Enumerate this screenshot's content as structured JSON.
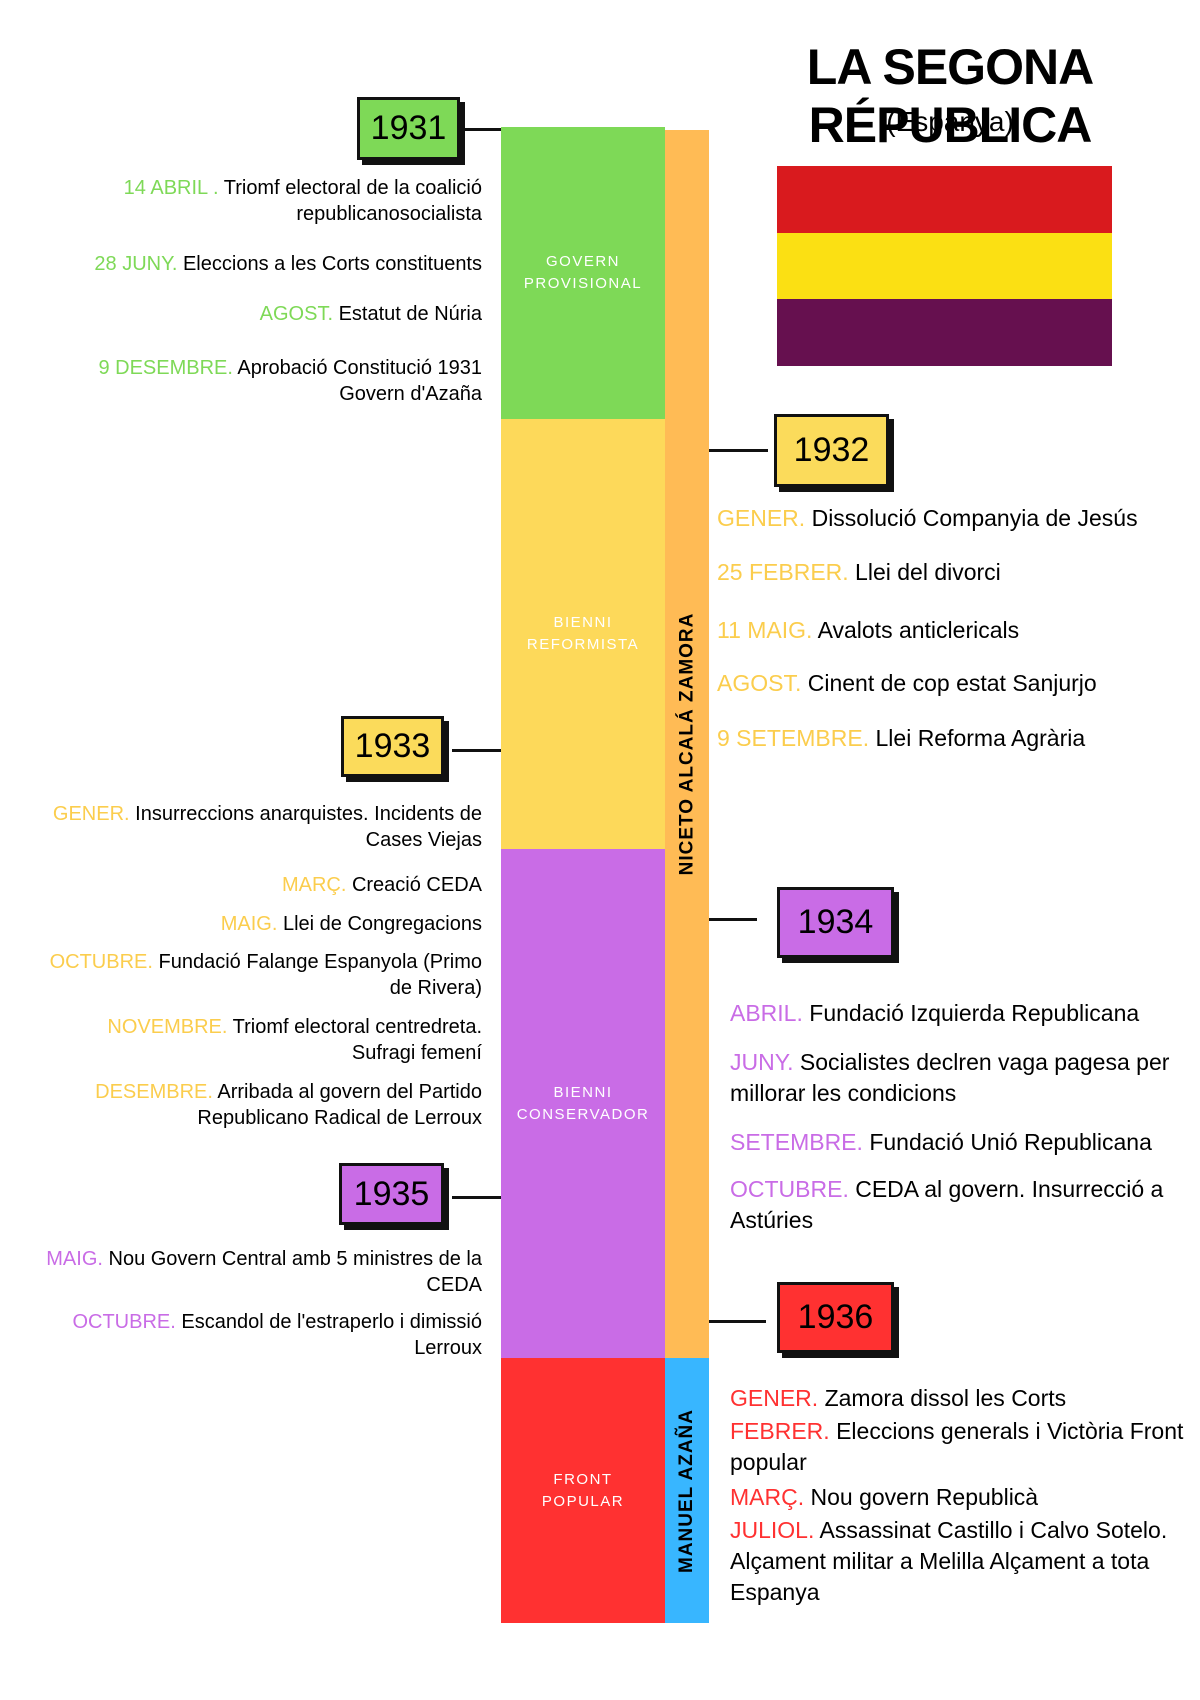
{
  "title": "LA SEGONA RÉPUBLICA",
  "subtitle": "(Espanya)",
  "periods": [
    "GOVERN PROVISIONAL",
    "BIENNI REFORMISTA",
    "BIENNI CONSERVADOR",
    "FRONT POPULAR"
  ],
  "presidents": [
    "NICETO ALCALÁ ZAMORA",
    "MANUEL AZAÑA"
  ],
  "years": [
    {
      "year": "1931",
      "events": [
        {
          "date": "14 ABRIL .",
          "text": "Triomf electoral de la coalició republicanosocialista"
        },
        {
          "date": "28 JUNY.",
          "text": "Eleccions a les Corts constituents"
        },
        {
          "date": "AGOST.",
          "text": "Estatut de Núria"
        },
        {
          "date": "9 DESEMBRE.",
          "text": "Aprobació Constitució 1931 Govern d'Azaña"
        }
      ]
    },
    {
      "year": "1932",
      "events": [
        {
          "date": "GENER.",
          "text": "Dissolució Companyia de Jesús"
        },
        {
          "date": "25 FEBRER.",
          "text": "Llei del divorci"
        },
        {
          "date": "11 MAIG.",
          "text": "Avalots anticlericals"
        },
        {
          "date": "AGOST.",
          "text": "Cinent de cop estat Sanjurjo"
        },
        {
          "date": "9 SETEMBRE.",
          "text": "Llei Reforma Agrària"
        }
      ]
    },
    {
      "year": "1933",
      "events": [
        {
          "date": "GENER.",
          "text": "Insurreccions anarquistes. Incidents de Cases Viejas"
        },
        {
          "date": "MARÇ.",
          "text": "Creació CEDA"
        },
        {
          "date": "MAIG.",
          "text": "Llei de Congregacions"
        },
        {
          "date": "OCTUBRE.",
          "text": "Fundació Falange Espanyola (Primo de Rivera)"
        },
        {
          "date": "NOVEMBRE.",
          "text": "Triomf electoral centredreta. Sufragi femení"
        },
        {
          "date": "DESEMBRE.",
          "text": "Arribada al govern del Partido Republicano Radical de Lerroux"
        }
      ]
    },
    {
      "year": "1934",
      "events": [
        {
          "date": "ABRIL.",
          "text": "Fundació Izquierda Republicana"
        },
        {
          "date": "JUNY.",
          "text": "Socialistes declren vaga pagesa per millorar les condicions"
        },
        {
          "date": "SETEMBRE.",
          "text": "Fundació Unió Republicana"
        },
        {
          "date": "OCTUBRE.",
          "text": "CEDA al govern. Insurrecció a Astúries"
        }
      ]
    },
    {
      "year": "1935",
      "events": [
        {
          "date": "MAIG.",
          "text": "Nou Govern Central amb 5 ministres de la CEDA"
        },
        {
          "date": "OCTUBRE.",
          "text": "Escandol de l'estraperlo i dimissió Lerroux"
        }
      ]
    },
    {
      "year": "1936",
      "events": [
        {
          "date": "GENER.",
          "text": "Zamora dissol les Corts"
        },
        {
          "date": "FEBRER.",
          "text": "Eleccions generals i Victòria Front popular"
        },
        {
          "date": "MARÇ.",
          "text": "Nou govern Republicà"
        },
        {
          "date": "JULIOL.",
          "text": "Assassinat Castillo i Calvo Sotelo. Alçament militar a Melilla Alçament a tota Espanya"
        }
      ]
    }
  ]
}
